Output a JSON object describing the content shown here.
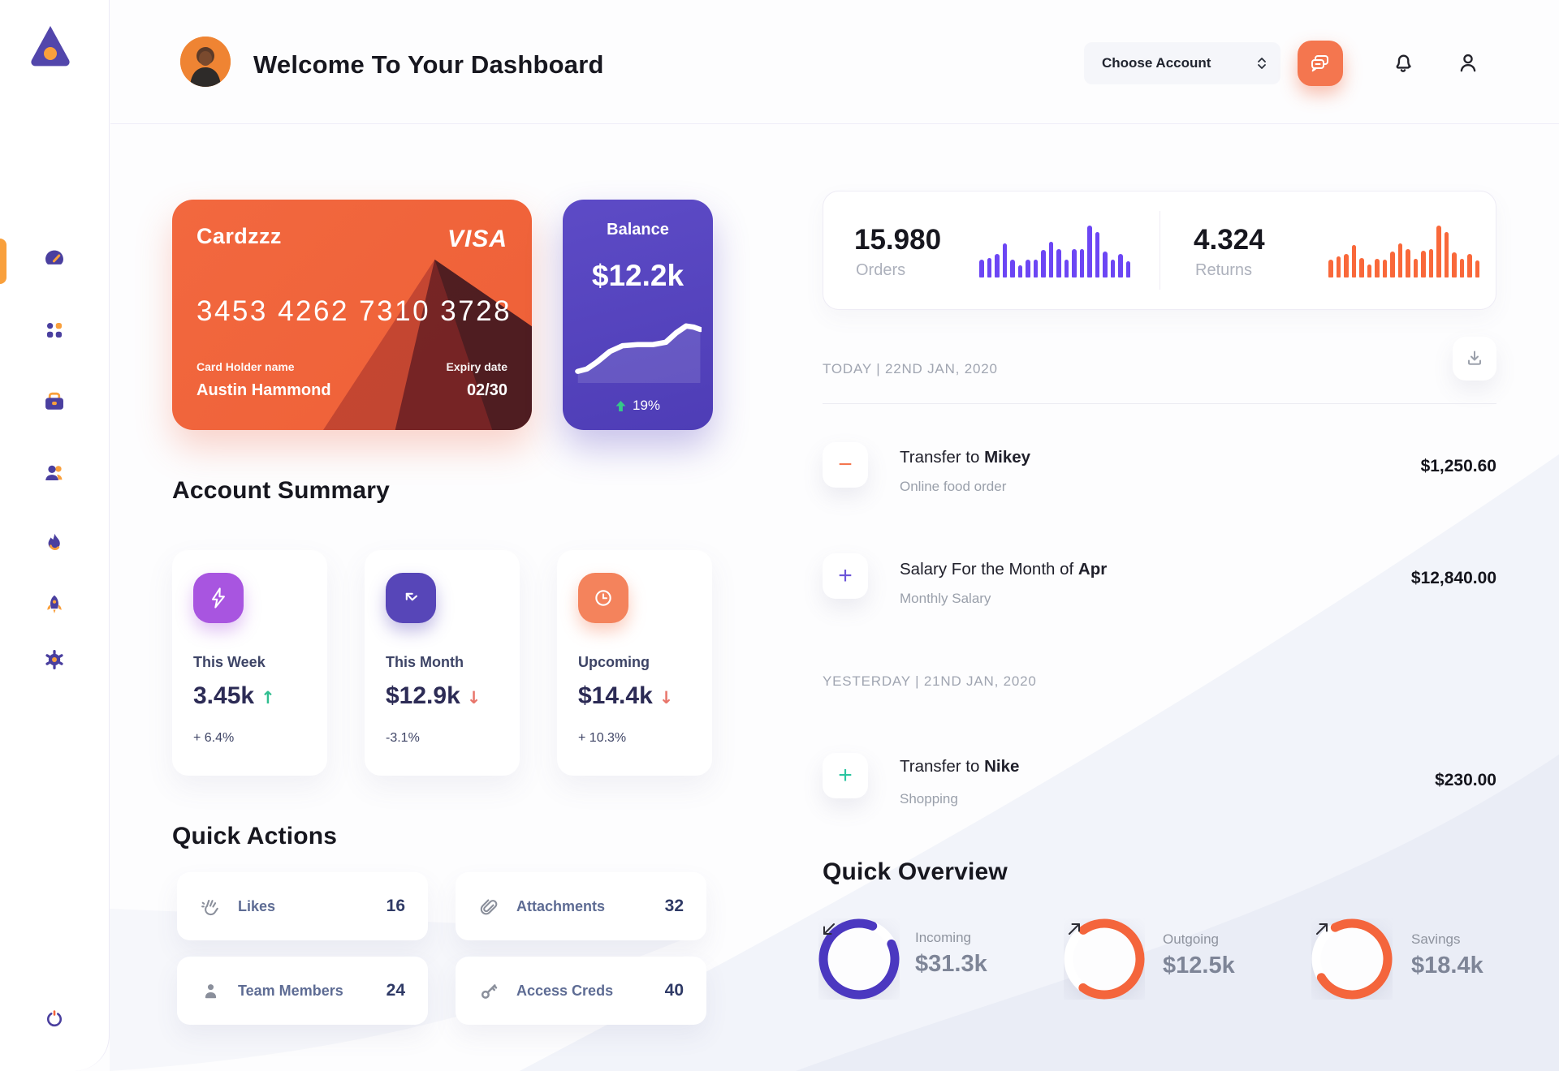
{
  "colors": {
    "accent_orange": "#f4764f",
    "accent_purple": "#5b49c0",
    "bar_purple": "#6c46f4",
    "bar_orange": "#f9683a",
    "green": "#2fbe8f",
    "red": "#e8756a",
    "teal": "#2bc5a0"
  },
  "header": {
    "title": "Welcome To Your Dashboard",
    "account_selector_label": "Choose Account"
  },
  "sidebar": {
    "items": [
      "dashboard",
      "apps",
      "work",
      "team",
      "activity",
      "launch",
      "settings"
    ],
    "logout": "power"
  },
  "bank_card": {
    "name": "Cardzzz",
    "brand": "VISA",
    "number": "3453 4262 7310 3728",
    "holder_label": "Card Holder name",
    "holder": "Austin Hammond",
    "expiry_label": "Expiry date",
    "expiry": "02/30"
  },
  "balance_card": {
    "label": "Balance",
    "value": "$12.2k",
    "change_pct": "19%"
  },
  "summary": {
    "title": "Account Summary",
    "cards": [
      {
        "period": "This Week",
        "value": "3.45k",
        "trend": "↑",
        "trend_dir": "up",
        "delta": "+ 6.4%",
        "icon": "bolt-icon",
        "icon_bg": "#a855e0"
      },
      {
        "period": "This Month",
        "value": "$12.9k",
        "trend": "↓",
        "trend_dir": "down",
        "delta": "-3.1%",
        "icon": "arrow-nw-icon",
        "icon_bg": "#5746b8"
      },
      {
        "period": "Upcoming",
        "value": "$14.4k",
        "trend": "↓",
        "trend_dir": "down",
        "delta": "+ 10.3%",
        "icon": "clock-icon",
        "icon_bg": "#f4835c"
      }
    ]
  },
  "quick_actions": {
    "title": "Quick Actions",
    "items": [
      {
        "label": "Likes",
        "count": "16",
        "icon": "clap-icon"
      },
      {
        "label": "Attachments",
        "count": "32",
        "icon": "paperclip-icon"
      },
      {
        "label": "Team Members",
        "count": "24",
        "icon": "person-icon"
      },
      {
        "label": "Access Creds",
        "count": "40",
        "icon": "key-icon"
      }
    ]
  },
  "stats": {
    "orders": {
      "value": "15.980",
      "label": "Orders"
    },
    "returns": {
      "value": "4.324",
      "label": "Returns"
    }
  },
  "transactions": {
    "today_label": "TODAY | 22ND JAN, 2020",
    "yesterday_label": "YESTERDAY | 21ND JAN, 2020",
    "items": [
      {
        "prefix": "Transfer to ",
        "bold": "Mikey",
        "sub": "Online food order",
        "amount": "$1,250.60",
        "sign": "−",
        "sign_color": "#f4764f"
      },
      {
        "prefix": "Salary For the Month of ",
        "bold": "Apr",
        "sub": "Monthly Salary",
        "amount": "$12,840.00",
        "sign": "+",
        "sign_color": "#6c55d8"
      },
      {
        "prefix": "Transfer to ",
        "bold": "Nike",
        "sub": "Shopping",
        "amount": "$230.00",
        "sign": "+",
        "sign_color": "#2bc5a0"
      }
    ]
  },
  "overview": {
    "title": "Quick Overview",
    "items": [
      {
        "label": "Incoming",
        "value": "$31.3k",
        "pct": 88,
        "rotate": -25,
        "ring_color": "#4b38c0",
        "arrow": "down-left"
      },
      {
        "label": "Outgoing",
        "value": "$12.5k",
        "pct": 70,
        "rotate": -126,
        "ring_color": "#f4653c",
        "arrow": "up-right"
      },
      {
        "label": "Savings",
        "value": "$18.4k",
        "pct": 74,
        "rotate": -118,
        "ring_color": "#f4653c",
        "arrow": "up-right"
      }
    ]
  },
  "chart_data": [
    {
      "type": "bar",
      "title": "Orders activity sparkbars",
      "values": [
        34,
        37,
        45,
        65,
        35,
        23,
        35,
        34,
        53,
        69,
        55,
        34,
        55,
        55,
        100,
        87,
        50,
        35,
        45,
        32
      ],
      "color": "#6c46f4",
      "ylim": [
        0,
        100
      ],
      "grid": false
    },
    {
      "type": "bar",
      "title": "Returns activity sparkbars",
      "values": [
        34,
        40,
        45,
        62,
        38,
        25,
        36,
        34,
        50,
        66,
        55,
        36,
        52,
        55,
        100,
        88,
        48,
        36,
        45,
        33
      ],
      "color": "#f9683a",
      "ylim": [
        0,
        100
      ],
      "grid": false
    },
    {
      "type": "line",
      "title": "Balance trend sparkline",
      "points": [
        [
          3,
          50
        ],
        [
          10,
          48
        ],
        [
          18,
          42
        ],
        [
          28,
          33
        ],
        [
          38,
          28
        ],
        [
          50,
          27
        ],
        [
          62,
          27
        ],
        [
          72,
          25
        ],
        [
          80,
          17
        ],
        [
          88,
          11
        ],
        [
          94,
          12
        ],
        [
          99,
          14
        ]
      ],
      "color": "#ffffff",
      "fill_opacity": 0.12
    },
    {
      "type": "donut",
      "title": "Quick Overview rings",
      "items": [
        {
          "label": "Incoming",
          "value": "$31.3k",
          "pct": 88
        },
        {
          "label": "Outgoing",
          "value": "$12.5k",
          "pct": 70
        },
        {
          "label": "Savings",
          "value": "$18.4k",
          "pct": 74
        }
      ]
    }
  ]
}
